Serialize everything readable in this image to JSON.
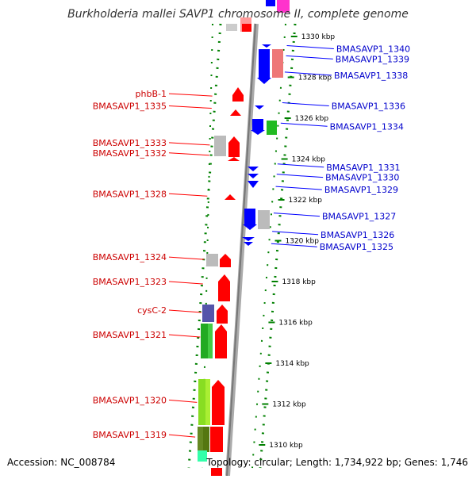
{
  "title": "Burkholderia mallei SAVP1 chromosome II, complete genome",
  "footer": {
    "accession": "Accession: NC_008784",
    "summary": "Topology: circular; Length: 1,734,922 bp; Genes: 1,746"
  },
  "colors": {
    "forward": "#ff0000",
    "reverse": "#0000ff",
    "backbone": "#999999",
    "ruler": "#008000",
    "label_forward": "#cc0000",
    "label_reverse": "#0000cc"
  },
  "ticks": [
    {
      "label": "1330 kbp",
      "pos": 1330
    },
    {
      "label": "1328 kbp",
      "pos": 1328
    },
    {
      "label": "1326 kbp",
      "pos": 1326
    },
    {
      "label": "1324 kbp",
      "pos": 1324
    },
    {
      "label": "1322 kbp",
      "pos": 1322
    },
    {
      "label": "1320 kbp",
      "pos": 1320
    },
    {
      "label": "1318 kbp",
      "pos": 1318
    },
    {
      "label": "1316 kbp",
      "pos": 1316
    },
    {
      "label": "1314 kbp",
      "pos": 1314
    },
    {
      "label": "1312 kbp",
      "pos": 1312
    },
    {
      "label": "1310 kbp",
      "pos": 1310
    }
  ],
  "forward_labels": [
    {
      "text": "phbB-1",
      "pos": 1327.2
    },
    {
      "text": "BMASAVP1_1335",
      "pos": 1326.6
    },
    {
      "text": "BMASAVP1_1333",
      "pos": 1324.8
    },
    {
      "text": "BMASAVP1_1332",
      "pos": 1324.3
    },
    {
      "text": "BMASAVP1_1328",
      "pos": 1322.3
    },
    {
      "text": "BMASAVP1_1324",
      "pos": 1319.2
    },
    {
      "text": "BMASAVP1_1323",
      "pos": 1318.0
    },
    {
      "text": "cysC-2",
      "pos": 1316.6
    },
    {
      "text": "BMASAVP1_1321",
      "pos": 1315.4
    },
    {
      "text": "BMASAVP1_1320",
      "pos": 1312.2
    },
    {
      "text": "BMASAVP1_1319",
      "pos": 1310.5
    }
  ],
  "reverse_labels": [
    {
      "text": "BMASAVP1_1340",
      "pos": 1329.4
    },
    {
      "text": "BMASAVP1_1339",
      "pos": 1328.9
    },
    {
      "text": "BMASAVP1_1338",
      "pos": 1328.1
    },
    {
      "text": "BMASAVP1_1336",
      "pos": 1326.6
    },
    {
      "text": "BMASAVP1_1334",
      "pos": 1325.6
    },
    {
      "text": "BMASAVP1_1331",
      "pos": 1323.6
    },
    {
      "text": "BMASAVP1_1330",
      "pos": 1323.1
    },
    {
      "text": "BMASAVP1_1329",
      "pos": 1322.5
    },
    {
      "text": "BMASAVP1_1327",
      "pos": 1321.2
    },
    {
      "text": "BMASAVP1_1326",
      "pos": 1320.3
    },
    {
      "text": "BMASAVP1_1325",
      "pos": 1319.7
    }
  ]
}
